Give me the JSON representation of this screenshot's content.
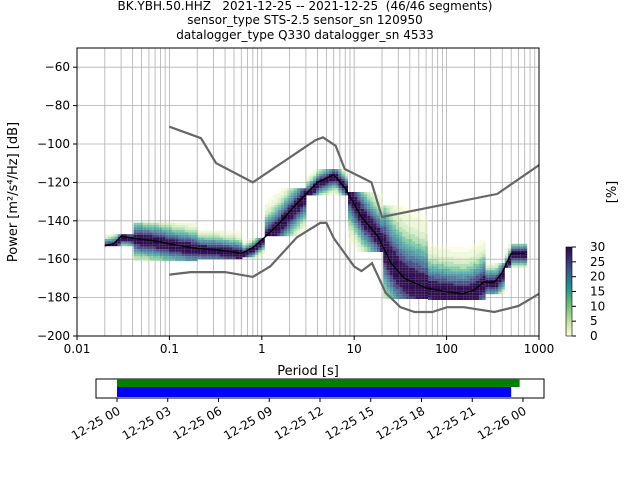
{
  "title_lines": [
    "BK.YBH.50.HHZ   2021-12-25 -- 2021-12-25  (46/46 segments)",
    "sensor_type STS-2.5 sensor_sn 120950",
    "datalogger_type Q330 datalogger_sn 4533"
  ],
  "chart_data": {
    "type": "heatmap",
    "xlabel": "Period [s]",
    "ylabel": "Power [m²/s⁴/Hz] [dB]",
    "xscale": "log",
    "xlim": [
      0.01,
      1000
    ],
    "ylim": [
      -200,
      -50
    ],
    "x_ticks": [
      {
        "value": 0.01,
        "label": "0.01"
      },
      {
        "value": 0.1,
        "label": "0.1"
      },
      {
        "value": 1,
        "label": "1"
      },
      {
        "value": 10,
        "label": "10"
      },
      {
        "value": 100,
        "label": "100"
      },
      {
        "value": 1000,
        "label": "1000"
      }
    ],
    "y_ticks": [
      {
        "value": -60,
        "label": "−60"
      },
      {
        "value": -80,
        "label": "−80"
      },
      {
        "value": -100,
        "label": "−100"
      },
      {
        "value": -120,
        "label": "−120"
      },
      {
        "value": -140,
        "label": "−140"
      },
      {
        "value": -160,
        "label": "−160"
      },
      {
        "value": -180,
        "label": "−180"
      },
      {
        "value": -200,
        "label": "−200"
      }
    ],
    "grid": true,
    "colorbar": {
      "label": "[%]",
      "range": [
        0,
        30
      ],
      "ticks": [
        {
          "value": 0,
          "label": "0"
        },
        {
          "value": 5,
          "label": "5"
        },
        {
          "value": 10,
          "label": "10"
        },
        {
          "value": 15,
          "label": "15"
        },
        {
          "value": 20,
          "label": "20"
        },
        {
          "value": 25,
          "label": "25"
        },
        {
          "value": 30,
          "label": "30"
        }
      ]
    },
    "noise_models": {
      "high": [
        [
          0.1,
          -91
        ],
        [
          0.22,
          -97
        ],
        [
          0.32,
          -110
        ],
        [
          0.8,
          -120
        ],
        [
          3.8,
          -98
        ],
        [
          4.6,
          -96.5
        ],
        [
          6.3,
          -101
        ],
        [
          7.9,
          -113
        ],
        [
          15.4,
          -120
        ],
        [
          20,
          -138
        ],
        [
          354,
          -126
        ],
        [
          1000,
          -111
        ]
      ],
      "low": [
        [
          0.1,
          -168
        ],
        [
          0.17,
          -166.7
        ],
        [
          0.4,
          -166.7
        ],
        [
          0.8,
          -169.2
        ],
        [
          1.24,
          -163.7
        ],
        [
          2.4,
          -148.6
        ],
        [
          4.3,
          -141.1
        ],
        [
          5,
          -141.1
        ],
        [
          6,
          -149
        ],
        [
          10,
          -163.8
        ],
        [
          12,
          -166.2
        ],
        [
          15.6,
          -162.1
        ],
        [
          21.9,
          -177.5
        ],
        [
          31.6,
          -185
        ],
        [
          45,
          -187.5
        ],
        [
          70,
          -187.5
        ],
        [
          101,
          -185
        ],
        [
          154,
          -185
        ],
        [
          328,
          -187.5
        ],
        [
          600,
          -184.4
        ],
        [
          1000,
          -178
        ]
      ]
    },
    "mean_curve": [
      [
        0.02,
        -153
      ],
      [
        0.025,
        -152
      ],
      [
        0.03,
        -148
      ],
      [
        0.04,
        -149
      ],
      [
        0.07,
        -150.5
      ],
      [
        0.1,
        -152
      ],
      [
        0.2,
        -154.5
      ],
      [
        0.3,
        -155
      ],
      [
        0.45,
        -156
      ],
      [
        0.6,
        -157
      ],
      [
        0.8,
        -154
      ],
      [
        1,
        -150
      ],
      [
        1.5,
        -142
      ],
      [
        2.5,
        -130
      ],
      [
        4,
        -120
      ],
      [
        6,
        -116
      ],
      [
        8,
        -123
      ],
      [
        12,
        -138
      ],
      [
        18,
        -148
      ],
      [
        25,
        -162
      ],
      [
        35,
        -170
      ],
      [
        60,
        -175
      ],
      [
        100,
        -177
      ],
      [
        150,
        -178
      ],
      [
        200,
        -176
      ],
      [
        250,
        -172
      ],
      [
        330,
        -172
      ],
      [
        400,
        -167
      ],
      [
        500,
        -157
      ],
      [
        700,
        -157
      ]
    ],
    "density_bands": [
      {
        "from": 0.02,
        "to": 0.04,
        "lo": -153,
        "hi": -147
      },
      {
        "from": 0.04,
        "to": 0.2,
        "lo": -160,
        "hi": -141
      },
      {
        "from": 0.2,
        "to": 0.6,
        "lo": -160,
        "hi": -145
      },
      {
        "from": 0.6,
        "to": 1,
        "lo": -158,
        "hi": -149
      },
      {
        "from": 1,
        "to": 3,
        "lo": -147,
        "hi": -123
      },
      {
        "from": 3,
        "to": 8,
        "lo": -126,
        "hi": -113
      },
      {
        "from": 8,
        "to": 20,
        "lo": -156,
        "hi": -125
      },
      {
        "from": 20,
        "to": 60,
        "lo": -180,
        "hi": -132
      },
      {
        "from": 60,
        "to": 250,
        "lo": -181,
        "hi": -150
      },
      {
        "from": 250,
        "to": 420,
        "lo": -178,
        "hi": -162
      },
      {
        "from": 420,
        "to": 700,
        "lo": -164,
        "hi": -152
      }
    ],
    "coverage": {
      "tick_labels": [
        "12-25 00",
        "12-25 03",
        "12-25 06",
        "12-25 09",
        "12-25 12",
        "12-25 15",
        "12-25 18",
        "12-25 21",
        "12-26 00"
      ],
      "start_hours": 0,
      "end_hours_green": 23.8,
      "end_hours_blue": 23.3,
      "span_hours": 24
    }
  }
}
